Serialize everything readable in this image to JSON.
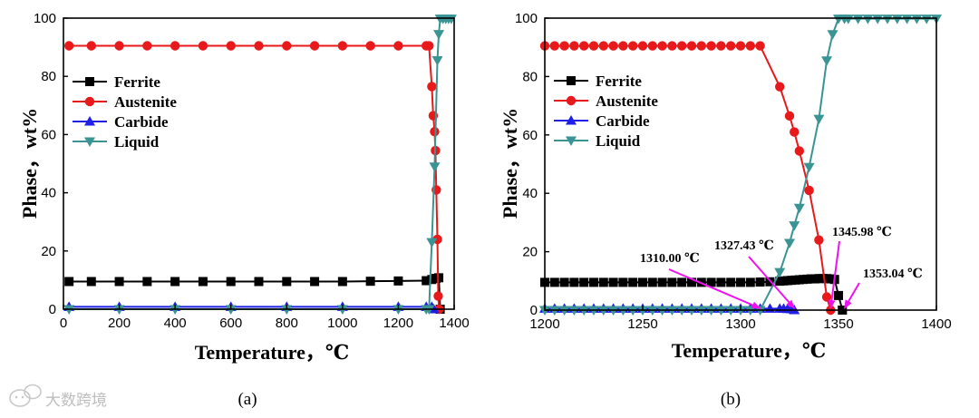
{
  "watermark": {
    "text": "大数跨境",
    "icon": "wechat-bubble-icon"
  },
  "colors": {
    "ferrite": "#000000",
    "austenite": "#e8191b",
    "carbide": "#1f1fe6",
    "liquid": "#3a9494",
    "arrow": "#ee11ee"
  },
  "chart_data": [
    {
      "type": "line",
      "panel_label": "(a)",
      "xlabel": "Temperature，℃",
      "ylabel": "Phase，wt%",
      "xlim": [
        0,
        1400
      ],
      "ylim": [
        0,
        100
      ],
      "xticks": [
        0,
        200,
        400,
        600,
        800,
        1000,
        1200,
        1400
      ],
      "yticks": [
        0,
        20,
        40,
        60,
        80,
        100
      ],
      "legend": {
        "placement": "upper-left",
        "entries": [
          "Ferrite",
          "Austenite",
          "Carbide",
          "Liquid"
        ]
      },
      "series": [
        {
          "name": "Ferrite",
          "marker": "square",
          "x": [
            20,
            100,
            200,
            300,
            400,
            500,
            600,
            700,
            800,
            900,
            1000,
            1100,
            1200,
            1300,
            1320,
            1335,
            1345,
            1350
          ],
          "y": [
            9.5,
            9.5,
            9.5,
            9.5,
            9.5,
            9.5,
            9.5,
            9.5,
            9.5,
            9.5,
            9.5,
            9.6,
            9.7,
            9.8,
            10.2,
            10.6,
            10.8,
            0
          ]
        },
        {
          "name": "Austenite",
          "marker": "circle",
          "x": [
            20,
            100,
            200,
            300,
            400,
            500,
            600,
            700,
            800,
            900,
            1000,
            1100,
            1200,
            1300,
            1310,
            1320,
            1325,
            1330,
            1333,
            1336,
            1340,
            1343,
            1346
          ],
          "y": [
            90.5,
            90.5,
            90.5,
            90.5,
            90.5,
            90.5,
            90.5,
            90.5,
            90.5,
            90.5,
            90.5,
            90.5,
            90.5,
            90.5,
            90.5,
            76.5,
            66.5,
            61,
            54.5,
            41,
            24,
            4.5,
            0
          ]
        },
        {
          "name": "Carbide",
          "marker": "triangle-up",
          "x": [
            20,
            200,
            400,
            600,
            800,
            1000,
            1200,
            1300,
            1320,
            1327
          ],
          "y": [
            0.8,
            0.8,
            0.8,
            0.8,
            0.8,
            0.8,
            0.8,
            0.8,
            0.8,
            0
          ]
        },
        {
          "name": "Liquid",
          "marker": "triangle-down",
          "x": [
            20,
            200,
            400,
            600,
            800,
            1000,
            1200,
            1300,
            1310,
            1320,
            1330,
            1340,
            1345,
            1350,
            1360,
            1370,
            1380,
            1390
          ],
          "y": [
            0,
            0,
            0,
            0,
            0,
            0,
            0,
            0,
            0,
            23,
            49,
            85.5,
            94.5,
            99.8,
            99.8,
            99.8,
            99.8,
            99.8
          ]
        }
      ]
    },
    {
      "type": "line",
      "panel_label": "(b)",
      "xlabel": "Temperature，℃",
      "ylabel": "Phase，wt%",
      "xlim": [
        1200,
        1400
      ],
      "ylim": [
        0,
        100
      ],
      "xticks": [
        1200,
        1250,
        1300,
        1350,
        1400
      ],
      "yticks": [
        0,
        20,
        40,
        60,
        80,
        100
      ],
      "legend": {
        "placement": "upper-left",
        "entries": [
          "Ferrite",
          "Austenite",
          "Carbide",
          "Liquid"
        ]
      },
      "annotations": [
        {
          "text": "1310.00 ℃",
          "x": 1310,
          "y": 0
        },
        {
          "text": "1327.43 ℃",
          "x": 1327.43,
          "y": 0
        },
        {
          "text": "1345.98 ℃",
          "x": 1345.98,
          "y": 0
        },
        {
          "text": "1353.04 ℃",
          "x": 1353.04,
          "y": 0
        }
      ],
      "series": [
        {
          "name": "Ferrite",
          "marker": "square",
          "x": [
            1200,
            1205,
            1210,
            1215,
            1220,
            1225,
            1230,
            1235,
            1240,
            1245,
            1250,
            1255,
            1260,
            1265,
            1270,
            1275,
            1280,
            1285,
            1290,
            1295,
            1300,
            1305,
            1310,
            1315,
            1320,
            1322,
            1324,
            1326,
            1328,
            1330,
            1332,
            1334,
            1336,
            1338,
            1340,
            1342,
            1344,
            1346,
            1348,
            1350,
            1352
          ],
          "y": [
            9.5,
            9.5,
            9.5,
            9.5,
            9.5,
            9.5,
            9.5,
            9.5,
            9.5,
            9.5,
            9.5,
            9.5,
            9.5,
            9.5,
            9.5,
            9.5,
            9.5,
            9.5,
            9.5,
            9.5,
            9.5,
            9.5,
            9.6,
            9.7,
            9.9,
            10.0,
            10.1,
            10.2,
            10.3,
            10.4,
            10.5,
            10.6,
            10.7,
            10.7,
            10.8,
            10.8,
            10.8,
            10.7,
            10.5,
            5.0,
            0
          ]
        },
        {
          "name": "Austenite",
          "marker": "circle",
          "x": [
            1200,
            1205,
            1210,
            1215,
            1220,
            1225,
            1230,
            1235,
            1240,
            1245,
            1250,
            1255,
            1260,
            1265,
            1270,
            1275,
            1280,
            1285,
            1290,
            1295,
            1300,
            1305,
            1310,
            1320,
            1325,
            1327.43,
            1330,
            1335,
            1340,
            1344,
            1345.98
          ],
          "y": [
            90.5,
            90.5,
            90.5,
            90.5,
            90.5,
            90.5,
            90.5,
            90.5,
            90.5,
            90.5,
            90.5,
            90.5,
            90.5,
            90.5,
            90.5,
            90.5,
            90.5,
            90.5,
            90.5,
            90.5,
            90.5,
            90.5,
            90.5,
            76.5,
            66.5,
            61,
            54.5,
            41,
            24,
            4.5,
            0
          ]
        },
        {
          "name": "Carbide",
          "marker": "triangle-up",
          "x": [
            1200,
            1205,
            1210,
            1215,
            1220,
            1225,
            1230,
            1235,
            1240,
            1245,
            1250,
            1255,
            1260,
            1265,
            1270,
            1275,
            1280,
            1285,
            1290,
            1295,
            1300,
            1305,
            1310,
            1315,
            1320,
            1322,
            1324,
            1326,
            1327.43
          ],
          "y": [
            0.5,
            0.5,
            0.5,
            0.5,
            0.5,
            0.5,
            0.5,
            0.5,
            0.5,
            0.5,
            0.5,
            0.5,
            0.5,
            0.5,
            0.5,
            0.5,
            0.5,
            0.5,
            0.5,
            0.5,
            0.5,
            0.5,
            0.5,
            0.5,
            0.5,
            0.5,
            0.4,
            0.3,
            0
          ]
        },
        {
          "name": "Liquid",
          "marker": "triangle-down",
          "x": [
            1200,
            1205,
            1210,
            1215,
            1220,
            1225,
            1230,
            1235,
            1240,
            1245,
            1250,
            1255,
            1260,
            1265,
            1270,
            1275,
            1280,
            1285,
            1290,
            1295,
            1300,
            1305,
            1310,
            1320,
            1325,
            1327.43,
            1330,
            1335,
            1340,
            1344,
            1347,
            1350,
            1353.04,
            1355,
            1360,
            1365,
            1370,
            1375,
            1380,
            1385,
            1390,
            1395,
            1400
          ],
          "y": [
            0,
            0,
            0,
            0,
            0,
            0,
            0,
            0,
            0,
            0,
            0,
            0,
            0,
            0,
            0,
            0,
            0,
            0,
            0,
            0,
            0,
            0,
            0,
            13,
            23,
            29,
            35,
            49,
            65.5,
            85.5,
            94.5,
            99.8,
            99.8,
            99.8,
            99.8,
            99.8,
            99.8,
            99.8,
            99.8,
            99.8,
            99.8,
            99.8,
            99.8
          ]
        }
      ]
    }
  ]
}
